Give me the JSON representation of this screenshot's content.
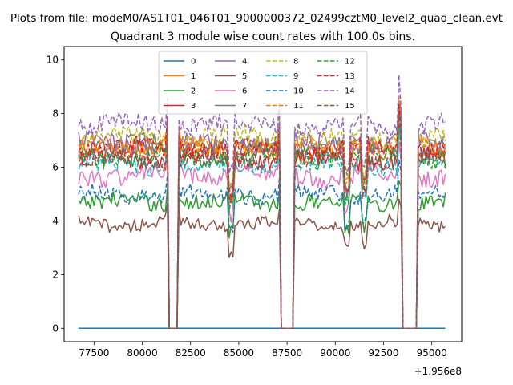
{
  "chart_data": {
    "type": "line",
    "suptitle": "Plots from file: modeM0/AS1T01_046T01_9000000372_02499cztM0_level2_quad_clean.evt",
    "title": "Quadrant 3 module wise count rates with 100.0s bins.",
    "xlabel": "",
    "ylabel": "",
    "x_offset_label": "+1.956e8",
    "xlim": [
      75950,
      96550
    ],
    "ylim": [
      -0.5,
      10.5
    ],
    "x_range": [
      76700,
      95700
    ],
    "bin_seconds": 100,
    "x_ticks": [
      77500,
      80000,
      82500,
      85000,
      87500,
      90000,
      92500,
      95000
    ],
    "x_tick_labels": [
      "77500",
      "80000",
      "82500",
      "85000",
      "87500",
      "90000",
      "92500",
      "95000"
    ],
    "y_ticks": [
      0,
      2,
      4,
      6,
      8,
      10
    ],
    "y_tick_labels": [
      "0",
      "2",
      "4",
      "6",
      "8",
      "10"
    ],
    "gaps": [
      [
        81400,
        81800
      ],
      [
        87200,
        87850
      ],
      [
        93500,
        94250
      ]
    ],
    "legend_position": "upper center",
    "series": [
      {
        "name": "0",
        "color": "#1f77b4",
        "dash": "solid",
        "mean": 0.0,
        "noise": 0.0
      },
      {
        "name": "1",
        "color": "#ff7f0e",
        "dash": "solid",
        "mean": 6.6,
        "noise": 0.35
      },
      {
        "name": "2",
        "color": "#2ca02c",
        "dash": "solid",
        "mean": 4.7,
        "noise": 0.3
      },
      {
        "name": "3",
        "color": "#d62728",
        "dash": "solid",
        "mean": 6.3,
        "noise": 0.35
      },
      {
        "name": "4",
        "color": "#9467bd",
        "dash": "solid",
        "mean": 6.9,
        "noise": 0.35
      },
      {
        "name": "5",
        "color": "#8c564b",
        "dash": "solid",
        "mean": 3.9,
        "noise": 0.25
      },
      {
        "name": "6",
        "color": "#e377c2",
        "dash": "solid",
        "mean": 5.7,
        "noise": 0.35
      },
      {
        "name": "7",
        "color": "#7f7f7f",
        "dash": "solid",
        "mean": 6.8,
        "noise": 0.35
      },
      {
        "name": "8",
        "color": "#bcbd22",
        "dash": "dashed",
        "mean": 7.1,
        "noise": 0.35
      },
      {
        "name": "9",
        "color": "#17becf",
        "dash": "dashed",
        "mean": 6.1,
        "noise": 0.35
      },
      {
        "name": "10",
        "color": "#1f77b4",
        "dash": "dashed",
        "mean": 5.0,
        "noise": 0.3
      },
      {
        "name": "11",
        "color": "#ff7f0e",
        "dash": "dashed",
        "mean": 6.8,
        "noise": 0.35
      },
      {
        "name": "12",
        "color": "#2ca02c",
        "dash": "dashed",
        "mean": 6.4,
        "noise": 0.35
      },
      {
        "name": "13",
        "color": "#d62728",
        "dash": "dashed",
        "mean": 6.7,
        "noise": 0.35
      },
      {
        "name": "14",
        "color": "#9467bd",
        "dash": "dashed",
        "mean": 7.6,
        "noise": 0.35
      },
      {
        "name": "15",
        "color": "#8c564b",
        "dash": "dashed",
        "mean": 6.3,
        "noise": 0.35
      }
    ]
  }
}
